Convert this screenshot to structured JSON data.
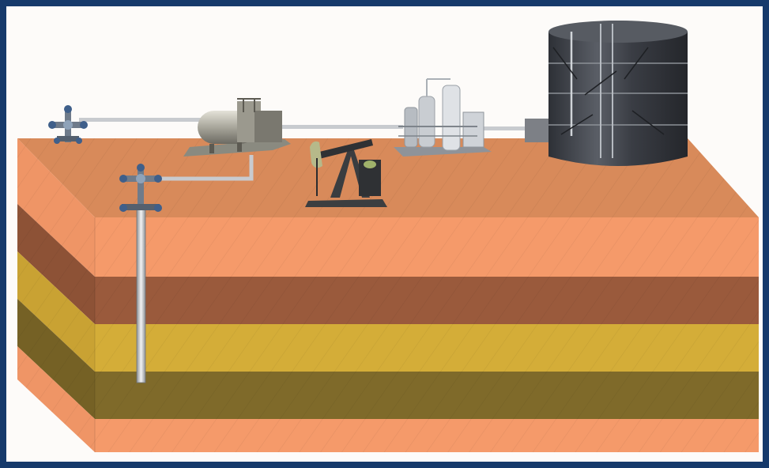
{
  "scene": {
    "title": "",
    "colors": {
      "frame": "#163a6b",
      "background": "#fdfbf9",
      "top_surface": "#d88a5a",
      "layer_orange": "#f59a6a",
      "layer_brown": "#9a5a3c",
      "layer_yellow": "#d4ad38",
      "layer_olive": "#7f6a2a",
      "pipe": "#c8cbcf",
      "steel_dark": "#3b3e45"
    },
    "layers": [
      "orange",
      "brown",
      "yellow",
      "olive",
      "orange"
    ],
    "equipment": [
      {
        "id": "wellhead-left",
        "icon": "wellhead-icon"
      },
      {
        "id": "wellhead-center",
        "icon": "wellhead-icon"
      },
      {
        "id": "separator",
        "icon": "separator-icon"
      },
      {
        "id": "pumpjack",
        "icon": "pumpjack-icon"
      },
      {
        "id": "processing-unit",
        "icon": "processing-unit-icon"
      },
      {
        "id": "storage-tank",
        "icon": "storage-tank-icon"
      }
    ]
  }
}
